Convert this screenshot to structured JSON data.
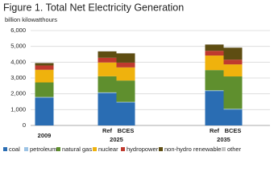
{
  "chart_data": {
    "type": "stacked-bar",
    "title": "Figure 1. Total Net Electricity Generation",
    "subtitle": "billion kilowatthours",
    "groups": [
      "2009",
      "2025",
      "2035"
    ],
    "categories": [
      null,
      "Ref",
      "BCES",
      "Ref",
      "BCES"
    ],
    "series": [
      {
        "name": "coal",
        "color": "#2a6db3",
        "values": [
          1760,
          2050,
          1450,
          2180,
          1010
        ]
      },
      {
        "name": "petroleum",
        "color": "#9cc3e5",
        "values": [
          40,
          40,
          40,
          40,
          40
        ]
      },
      {
        "name": "natural gas",
        "color": "#5f8f2e",
        "values": [
          920,
          1020,
          1350,
          1280,
          2050
        ]
      },
      {
        "name": "nuclear",
        "color": "#efb20d",
        "values": [
          800,
          870,
          830,
          920,
          760
        ]
      },
      {
        "name": "hydropower",
        "color": "#bf3a2e",
        "values": [
          270,
          300,
          300,
          300,
          300
        ]
      },
      {
        "name": "non-hydro renewables",
        "color": "#5e4d12",
        "values": [
          150,
          400,
          590,
          390,
          760
        ]
      },
      {
        "name": "other",
        "color": "#c4c4c4",
        "values": [
          20,
          20,
          20,
          20,
          20
        ]
      }
    ],
    "ylim": [
      0,
      6000
    ],
    "yticks": [
      0,
      {
        "value": 1000,
        "label": "1,000"
      },
      {
        "value": 2000,
        "label": "2,000"
      },
      {
        "value": 3000,
        "label": "3,000"
      },
      {
        "value": 4000,
        "label": "4,000"
      },
      {
        "value": 5000,
        "label": "5,000"
      },
      {
        "value": 6000,
        "label": "6,000"
      }
    ],
    "grid": true
  }
}
